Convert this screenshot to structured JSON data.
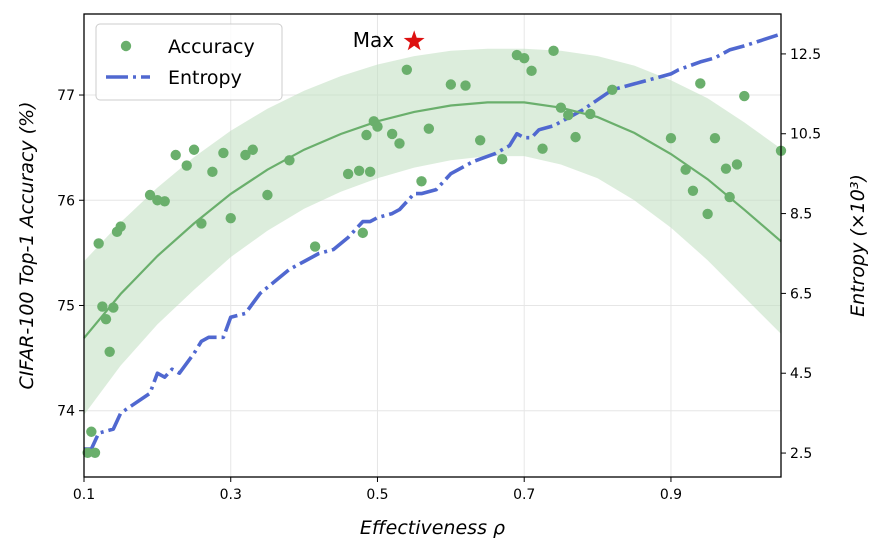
{
  "chart_data": {
    "type": "scatter",
    "xlabel": "Effectiveness ρ",
    "ylabel_left": "CIFAR-100 Top-1 Accuracy (%)",
    "ylabel_right": "Entropy (×10³)",
    "x_ticks": [
      0.1,
      0.3,
      0.5,
      0.7,
      0.9
    ],
    "x_tick_labels": [
      "0.1",
      "0.3",
      "0.5",
      "0.7",
      "0.9"
    ],
    "y_left_ticks": [
      74,
      75,
      76,
      77
    ],
    "y_left_tick_labels": [
      "74",
      "75",
      "76",
      "77"
    ],
    "y_right_ticks": [
      2.5,
      4.5,
      6.5,
      8.5,
      10.5,
      12.5
    ],
    "y_right_tick_labels": [
      "2.5",
      "4.5",
      "6.5",
      "8.5",
      "10.5",
      "12.5"
    ],
    "xlim": [
      0.1,
      1.05
    ],
    "ylim_left": [
      73.37,
      77.77
    ],
    "ylim_right": [
      1.9,
      13.5
    ],
    "grid": true,
    "legend_position": "upper-left",
    "legend": [
      "Accuracy",
      "Entropy"
    ],
    "colors": {
      "accuracy": "#6aaf6c",
      "fit": "#6aaf6c",
      "band": "#bfdfc0",
      "entropy": "#5068d0",
      "max_marker": "#dd1111"
    },
    "annotation": {
      "text": "Max",
      "x": 0.55,
      "y": 77.51
    },
    "accuracy_points": [
      [
        0.105,
        73.6
      ],
      [
        0.11,
        73.8
      ],
      [
        0.115,
        73.6
      ],
      [
        0.12,
        75.59
      ],
      [
        0.125,
        74.99
      ],
      [
        0.13,
        74.87
      ],
      [
        0.135,
        74.56
      ],
      [
        0.14,
        74.98
      ],
      [
        0.145,
        75.7
      ],
      [
        0.15,
        75.75
      ],
      [
        0.19,
        76.05
      ],
      [
        0.2,
        76.0
      ],
      [
        0.21,
        75.99
      ],
      [
        0.225,
        76.43
      ],
      [
        0.24,
        76.33
      ],
      [
        0.25,
        76.48
      ],
      [
        0.26,
        75.78
      ],
      [
        0.275,
        76.27
      ],
      [
        0.29,
        76.45
      ],
      [
        0.3,
        75.83
      ],
      [
        0.32,
        76.43
      ],
      [
        0.33,
        76.48
      ],
      [
        0.35,
        76.05
      ],
      [
        0.38,
        76.38
      ],
      [
        0.415,
        75.56
      ],
      [
        0.46,
        76.25
      ],
      [
        0.475,
        76.28
      ],
      [
        0.48,
        75.69
      ],
      [
        0.485,
        76.62
      ],
      [
        0.49,
        76.27
      ],
      [
        0.495,
        76.75
      ],
      [
        0.5,
        76.7
      ],
      [
        0.52,
        76.63
      ],
      [
        0.53,
        76.54
      ],
      [
        0.54,
        77.24
      ],
      [
        0.56,
        76.18
      ],
      [
        0.57,
        76.68
      ],
      [
        0.6,
        77.1
      ],
      [
        0.62,
        77.09
      ],
      [
        0.64,
        76.57
      ],
      [
        0.67,
        76.39
      ],
      [
        0.69,
        77.38
      ],
      [
        0.7,
        77.35
      ],
      [
        0.71,
        77.23
      ],
      [
        0.725,
        76.49
      ],
      [
        0.74,
        77.42
      ],
      [
        0.75,
        76.88
      ],
      [
        0.76,
        76.81
      ],
      [
        0.77,
        76.6
      ],
      [
        0.79,
        76.82
      ],
      [
        0.82,
        77.05
      ],
      [
        0.9,
        76.59
      ],
      [
        0.92,
        76.29
      ],
      [
        0.93,
        76.09
      ],
      [
        0.94,
        77.11
      ],
      [
        0.95,
        75.87
      ],
      [
        0.96,
        76.59
      ],
      [
        0.975,
        76.3
      ],
      [
        0.98,
        76.03
      ],
      [
        0.99,
        76.34
      ],
      [
        1.0,
        76.99
      ],
      [
        1.05,
        76.47
      ]
    ],
    "fit_curve": {
      "x": [
        0.1,
        0.15,
        0.2,
        0.25,
        0.3,
        0.35,
        0.4,
        0.45,
        0.5,
        0.55,
        0.6,
        0.65,
        0.7,
        0.75,
        0.8,
        0.85,
        0.9,
        0.95,
        1.0,
        1.05
      ],
      "y": [
        74.69,
        75.11,
        75.47,
        75.78,
        76.06,
        76.29,
        76.48,
        76.63,
        76.75,
        76.84,
        76.9,
        76.93,
        76.93,
        76.88,
        76.79,
        76.64,
        76.44,
        76.2,
        75.91,
        75.61
      ]
    },
    "band_upper": [
      75.42,
      75.79,
      76.12,
      76.41,
      76.66,
      76.87,
      77.04,
      77.18,
      77.29,
      77.37,
      77.42,
      77.44,
      77.44,
      77.42,
      77.37,
      77.28,
      77.14,
      76.97,
      76.74,
      76.49
    ],
    "band_lower": [
      73.96,
      74.43,
      74.82,
      75.15,
      75.46,
      75.71,
      75.92,
      76.08,
      76.21,
      76.31,
      76.38,
      76.42,
      76.42,
      76.34,
      76.21,
      76.0,
      75.74,
      75.43,
      75.08,
      74.73
    ],
    "entropy": {
      "x": [
        0.1,
        0.11,
        0.12,
        0.14,
        0.15,
        0.19,
        0.2,
        0.21,
        0.22,
        0.23,
        0.25,
        0.26,
        0.27,
        0.29,
        0.3,
        0.32,
        0.34,
        0.36,
        0.38,
        0.4,
        0.42,
        0.44,
        0.46,
        0.48,
        0.49,
        0.5,
        0.52,
        0.53,
        0.55,
        0.56,
        0.58,
        0.6,
        0.63,
        0.66,
        0.68,
        0.69,
        0.7,
        0.71,
        0.72,
        0.74,
        0.76,
        0.78,
        0.82,
        0.86,
        0.88,
        0.9,
        0.91,
        0.94,
        0.96,
        0.98,
        1.0,
        1.05
      ],
      "y": [
        2.6,
        2.6,
        3.0,
        3.1,
        3.5,
        4.0,
        4.5,
        4.4,
        4.6,
        4.5,
        5.0,
        5.3,
        5.4,
        5.4,
        5.9,
        6.0,
        6.5,
        6.8,
        7.1,
        7.3,
        7.5,
        7.6,
        7.9,
        8.3,
        8.3,
        8.4,
        8.5,
        8.6,
        9.0,
        9.0,
        9.1,
        9.5,
        9.8,
        10.0,
        10.2,
        10.5,
        10.4,
        10.4,
        10.6,
        10.7,
        10.9,
        11.1,
        11.6,
        11.8,
        11.9,
        12.0,
        12.1,
        12.3,
        12.4,
        12.6,
        12.7,
        13.0
      ]
    }
  }
}
